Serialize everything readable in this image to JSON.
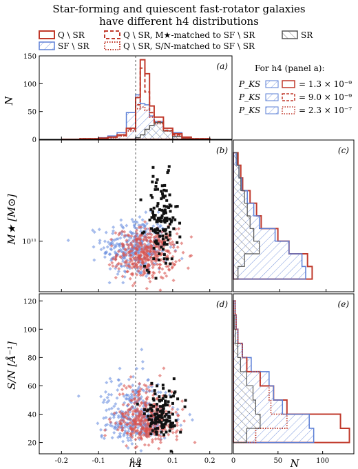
{
  "figure": {
    "title_line1": "Star-forming and quiescent fast-rotator galaxies",
    "title_line2": "have different h4 distributions"
  },
  "legend": {
    "q_sr": "Q \\ SR",
    "sf_sr": "SF \\ SR",
    "q_mass": "Q \\ SR,  M★-matched to SF \\ SR",
    "q_sn": "Q \\ SR,  S/N-matched to SF \\ SR",
    "sr": "SR"
  },
  "ks_box": {
    "title": "For h4 (panel a):",
    "rows": [
      {
        "label": "P_KS",
        "value": "= 1.3 × 10⁻⁹"
      },
      {
        "label": "P_KS",
        "value": "= 9.0 × 10⁻⁹"
      },
      {
        "label": "P_KS",
        "value": "= 2.3 × 10⁻⁷"
      }
    ]
  },
  "colors": {
    "q": "#c0392b",
    "sf": "#5b7fd6",
    "sr": "#555555",
    "q_point": "#d9534f",
    "sf_point": "#6a8fe0",
    "sr_point": "#111111"
  },
  "chart_data": [
    {
      "id": "a",
      "type": "bar",
      "panel_label": "(a)",
      "ylabel": "N",
      "xlim": [
        -0.26,
        0.26
      ],
      "ylim": [
        0,
        150
      ],
      "yticks": [
        0,
        50,
        100,
        150
      ],
      "bin_edges": [
        -0.2,
        -0.15,
        -0.1,
        -0.075,
        -0.05,
        -0.025,
        0.0,
        0.0125,
        0.025,
        0.0375,
        0.05,
        0.075,
        0.1,
        0.125,
        0.15,
        0.2
      ],
      "series": [
        {
          "name": "Q \\ SR",
          "values": [
            0,
            1,
            2,
            4,
            8,
            20,
            75,
            143,
            118,
            60,
            40,
            20,
            10,
            4,
            1
          ]
        },
        {
          "name": "SF \\ SR",
          "values": [
            0,
            1,
            3,
            6,
            12,
            48,
            80,
            64,
            62,
            42,
            32,
            20,
            12,
            4,
            1
          ]
        },
        {
          "name": "Q \\ SR,  M★-matched to SF \\ SR",
          "values": [
            0,
            1,
            2,
            4,
            7,
            18,
            62,
            128,
            85,
            48,
            32,
            16,
            8,
            3,
            1
          ]
        },
        {
          "name": "Q \\ SR,  S/N-matched to SF \\ SR",
          "values": [
            0,
            1,
            2,
            3,
            6,
            15,
            55,
            58,
            52,
            40,
            28,
            15,
            7,
            2,
            1
          ]
        },
        {
          "name": "SR",
          "values": [
            0,
            0,
            0,
            0,
            0,
            0,
            3,
            8,
            18,
            25,
            30,
            15,
            5,
            2,
            0
          ]
        }
      ]
    },
    {
      "id": "b",
      "type": "scatter",
      "panel_label": "(b)",
      "ylabel": "M★ [M⊙]",
      "ytick_label": "10¹¹",
      "ytick_value": 11.0,
      "ylim": [
        10.6,
        11.8
      ],
      "xlim": [
        -0.26,
        0.26
      ]
    },
    {
      "id": "c",
      "type": "bar",
      "orientation": "horizontal",
      "panel_label": "(c)",
      "xlim": [
        0,
        130
      ],
      "xticks": [
        0,
        50,
        100
      ],
      "bin_edges": [
        10.7,
        10.8,
        10.9,
        11.0,
        11.1,
        11.2,
        11.3,
        11.4,
        11.5,
        11.6,
        11.7
      ],
      "series": [
        {
          "name": "Q \\ SR",
          "values": [
            85,
            80,
            60,
            48,
            30,
            25,
            18,
            10,
            8,
            5
          ]
        },
        {
          "name": "SF \\ SR",
          "values": [
            78,
            74,
            60,
            45,
            28,
            22,
            15,
            9,
            6,
            3
          ]
        },
        {
          "name": "SR",
          "values": [
            5,
            12,
            28,
            22,
            18,
            15,
            12,
            8,
            6,
            4
          ]
        }
      ]
    },
    {
      "id": "d",
      "type": "scatter",
      "panel_label": "(d)",
      "xlabel": "h4",
      "ylabel": "S/N [Å⁻¹]",
      "xlim": [
        -0.26,
        0.26
      ],
      "ylim": [
        12,
        125
      ],
      "xticks": [
        -0.2,
        -0.1,
        0.0,
        0.1,
        0.2
      ],
      "yticks": [
        20,
        40,
        60,
        80,
        100,
        120
      ]
    },
    {
      "id": "e",
      "type": "bar",
      "orientation": "horizontal",
      "panel_label": "(e)",
      "xlabel": "N",
      "xlim": [
        0,
        135
      ],
      "xticks": [
        0,
        50,
        100
      ],
      "bin_edges": [
        20,
        30,
        40,
        50,
        60,
        70,
        80,
        90,
        100,
        110,
        120
      ],
      "series": [
        {
          "name": "Q \\ SR",
          "values": [
            130,
            120,
            60,
            45,
            30,
            15,
            10,
            5,
            3,
            2
          ]
        },
        {
          "name": "SF \\ SR",
          "values": [
            90,
            85,
            55,
            45,
            40,
            20,
            10,
            5,
            3,
            2
          ]
        },
        {
          "name": "Q \\ SR,  S/N-matched to SF \\ SR",
          "values": [
            25,
            60,
            42,
            40,
            30,
            15,
            10,
            5,
            3,
            2
          ]
        },
        {
          "name": "SR",
          "values": [
            15,
            30,
            25,
            22,
            15,
            8,
            5,
            2,
            1,
            0
          ]
        }
      ]
    }
  ]
}
